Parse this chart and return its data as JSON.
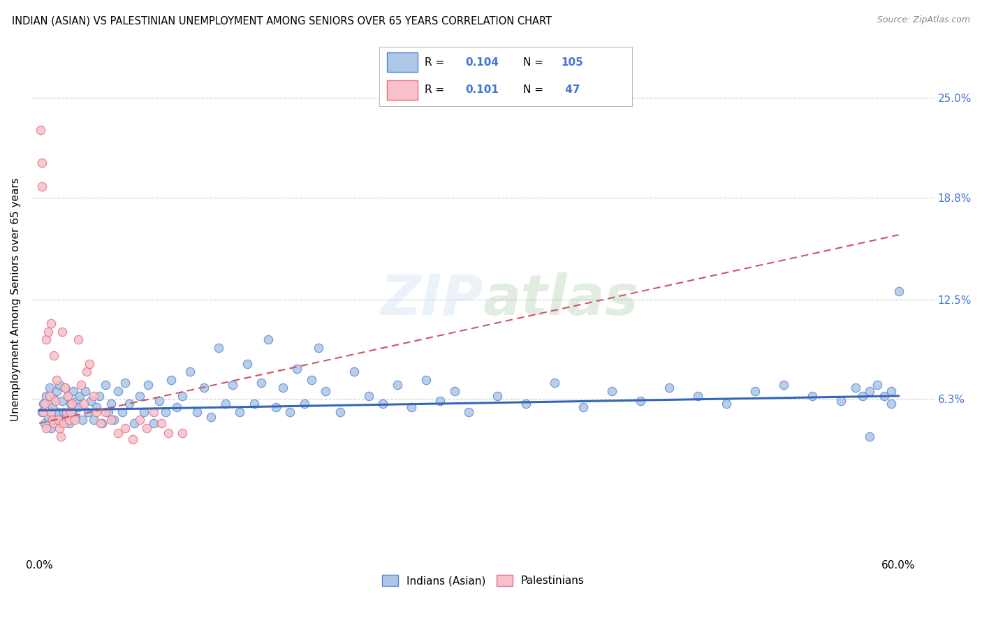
{
  "title": "INDIAN (ASIAN) VS PALESTINIAN UNEMPLOYMENT AMONG SENIORS OVER 65 YEARS CORRELATION CHART",
  "source": "Source: ZipAtlas.com",
  "ylabel": "Unemployment Among Seniors over 65 years",
  "xlim": [
    -0.005,
    0.625
  ],
  "ylim": [
    -0.035,
    0.285
  ],
  "yticks": [
    0.063,
    0.125,
    0.188,
    0.25
  ],
  "ytick_labels": [
    "6.3%",
    "12.5%",
    "18.8%",
    "25.0%"
  ],
  "xticks": [
    0.0,
    0.1,
    0.2,
    0.3,
    0.4,
    0.5,
    0.6
  ],
  "xtick_labels": [
    "0.0%",
    "",
    "",
    "",
    "",
    "",
    "60.0%"
  ],
  "indian_color": "#aec6e8",
  "indian_edge_color": "#5588cc",
  "indian_line_color": "#3366bb",
  "palestinian_color": "#f9c0cb",
  "palestinian_edge_color": "#e07080",
  "palestinian_line_color": "#cc5566",
  "background_color": "#ffffff",
  "watermark": "ZIPatlas",
  "legend_color": "#4477cc",
  "indian_R": "0.104",
  "indian_N": "105",
  "palestinian_R": "0.101",
  "palestinian_N": "47",
  "indian_trend_x0": 0.0,
  "indian_trend_y0": 0.056,
  "indian_trend_x1": 0.6,
  "indian_trend_y1": 0.065,
  "palestinian_trend_x0": 0.0,
  "palestinian_trend_y0": 0.048,
  "palestinian_trend_x1": 0.6,
  "palestinian_trend_y1": 0.165,
  "indian_scatter_x": [
    0.002,
    0.003,
    0.004,
    0.005,
    0.006,
    0.007,
    0.008,
    0.009,
    0.01,
    0.011,
    0.012,
    0.013,
    0.014,
    0.015,
    0.016,
    0.017,
    0.018,
    0.019,
    0.02,
    0.021,
    0.022,
    0.023,
    0.024,
    0.025,
    0.026,
    0.027,
    0.028,
    0.03,
    0.032,
    0.034,
    0.036,
    0.038,
    0.04,
    0.042,
    0.044,
    0.046,
    0.048,
    0.05,
    0.052,
    0.055,
    0.058,
    0.06,
    0.063,
    0.066,
    0.07,
    0.073,
    0.076,
    0.08,
    0.084,
    0.088,
    0.092,
    0.096,
    0.1,
    0.105,
    0.11,
    0.115,
    0.12,
    0.125,
    0.13,
    0.135,
    0.14,
    0.145,
    0.15,
    0.155,
    0.16,
    0.165,
    0.17,
    0.175,
    0.18,
    0.185,
    0.19,
    0.195,
    0.2,
    0.21,
    0.22,
    0.23,
    0.24,
    0.25,
    0.26,
    0.27,
    0.28,
    0.29,
    0.3,
    0.32,
    0.34,
    0.36,
    0.38,
    0.4,
    0.42,
    0.44,
    0.46,
    0.48,
    0.5,
    0.52,
    0.54,
    0.56,
    0.57,
    0.575,
    0.58,
    0.585,
    0.59,
    0.595,
    0.6,
    0.595,
    0.58
  ],
  "indian_scatter_y": [
    0.055,
    0.06,
    0.048,
    0.065,
    0.052,
    0.07,
    0.045,
    0.058,
    0.063,
    0.05,
    0.068,
    0.055,
    0.072,
    0.048,
    0.062,
    0.055,
    0.07,
    0.052,
    0.065,
    0.048,
    0.06,
    0.055,
    0.068,
    0.052,
    0.062,
    0.058,
    0.065,
    0.05,
    0.068,
    0.055,
    0.062,
    0.05,
    0.058,
    0.065,
    0.048,
    0.072,
    0.055,
    0.06,
    0.05,
    0.068,
    0.055,
    0.073,
    0.06,
    0.048,
    0.065,
    0.055,
    0.072,
    0.048,
    0.062,
    0.055,
    0.075,
    0.058,
    0.065,
    0.08,
    0.055,
    0.07,
    0.052,
    0.095,
    0.06,
    0.072,
    0.055,
    0.085,
    0.06,
    0.073,
    0.1,
    0.058,
    0.07,
    0.055,
    0.082,
    0.06,
    0.075,
    0.095,
    0.068,
    0.055,
    0.08,
    0.065,
    0.06,
    0.072,
    0.058,
    0.075,
    0.062,
    0.068,
    0.055,
    0.065,
    0.06,
    0.073,
    0.058,
    0.068,
    0.062,
    0.07,
    0.065,
    0.06,
    0.068,
    0.072,
    0.065,
    0.062,
    0.07,
    0.065,
    0.068,
    0.072,
    0.065,
    0.068,
    0.13,
    0.06,
    0.04
  ],
  "palestinian_scatter_x": [
    0.001,
    0.002,
    0.002,
    0.003,
    0.004,
    0.005,
    0.005,
    0.006,
    0.007,
    0.008,
    0.008,
    0.009,
    0.01,
    0.01,
    0.011,
    0.012,
    0.013,
    0.014,
    0.015,
    0.016,
    0.017,
    0.018,
    0.019,
    0.02,
    0.021,
    0.022,
    0.023,
    0.025,
    0.027,
    0.029,
    0.031,
    0.033,
    0.035,
    0.038,
    0.04,
    0.043,
    0.046,
    0.05,
    0.055,
    0.06,
    0.065,
    0.07,
    0.075,
    0.08,
    0.085,
    0.09,
    0.1
  ],
  "palestinian_scatter_y": [
    0.23,
    0.21,
    0.195,
    0.055,
    0.06,
    0.045,
    0.1,
    0.105,
    0.065,
    0.055,
    0.11,
    0.05,
    0.09,
    0.048,
    0.062,
    0.075,
    0.05,
    0.045,
    0.04,
    0.105,
    0.048,
    0.07,
    0.055,
    0.065,
    0.05,
    0.055,
    0.06,
    0.05,
    0.1,
    0.072,
    0.06,
    0.08,
    0.085,
    0.065,
    0.055,
    0.048,
    0.055,
    0.05,
    0.042,
    0.045,
    0.038,
    0.05,
    0.045,
    0.055,
    0.048,
    0.042,
    0.042
  ]
}
